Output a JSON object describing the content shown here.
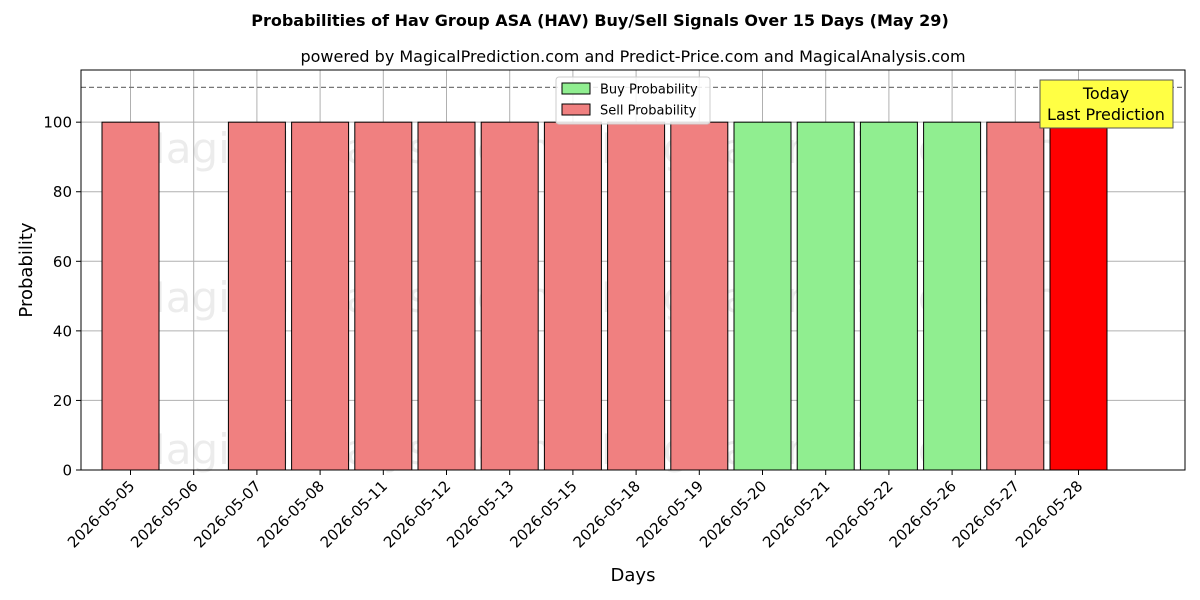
{
  "chart_data": {
    "type": "bar",
    "title": "Probabilities of Hav Group ASA (HAV) Buy/Sell Signals Over 15 Days (May 29)",
    "subtitle": "powered by MagicalPrediction.com and Predict-Price.com and MagicalAnalysis.com",
    "xlabel": "Days",
    "ylabel": "Probability",
    "ylim": [
      0,
      115
    ],
    "yticks": [
      "0",
      "20",
      "40",
      "60",
      "80",
      "100"
    ],
    "grid": true,
    "legend_position": "top-center",
    "reference_line": 110,
    "categories": [
      "2026-05-05",
      "2026-05-06",
      "2026-05-07",
      "2026-05-08",
      "2026-05-11",
      "2026-05-12",
      "2026-05-13",
      "2026-05-15",
      "2026-05-18",
      "2026-05-19",
      "2026-05-20",
      "2026-05-21",
      "2026-05-22",
      "2026-05-26",
      "2026-05-27",
      "2026-05-28"
    ],
    "series": [
      {
        "name": "Buy Probability",
        "color": "#90ee90",
        "values": [
          0,
          0,
          0,
          0,
          0,
          0,
          0,
          0,
          0,
          0,
          100,
          100,
          100,
          100,
          0,
          0
        ]
      },
      {
        "name": "Sell Probability",
        "color": "#f08080",
        "values": [
          100,
          0,
          100,
          100,
          100,
          100,
          100,
          100,
          100,
          100,
          0,
          0,
          0,
          0,
          100,
          100
        ]
      }
    ],
    "highlight": {
      "category": "2026-05-28",
      "color": "#ff0000"
    },
    "annotation": {
      "lines": [
        "Today",
        "Last Prediction"
      ],
      "color": "#ffff44"
    },
    "watermarks": [
      "MagicalAnalysis.com",
      "MagicalPrediction.com"
    ]
  }
}
